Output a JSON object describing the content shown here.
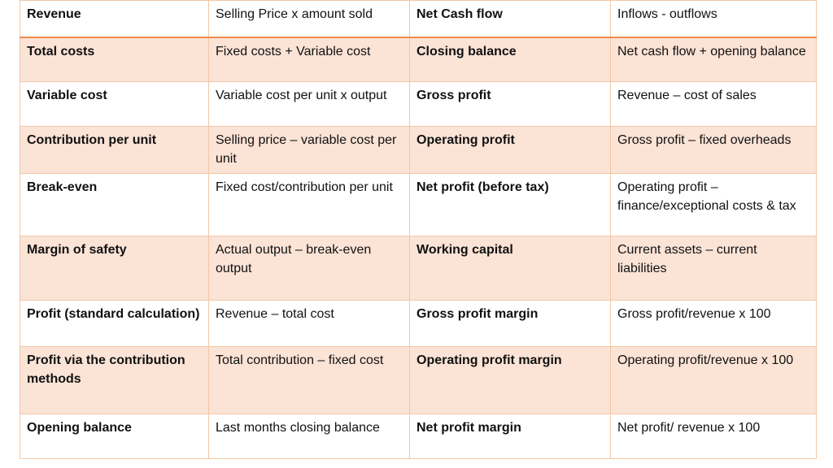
{
  "rows": [
    {
      "term1": "Revenue",
      "formula1": "Selling Price x amount sold",
      "term2": "Net Cash flow",
      "formula2": "Inflows - outflows"
    },
    {
      "term1": "Total costs",
      "formula1": "Fixed costs + Variable cost",
      "term2": "Closing balance",
      "formula2": "Net cash flow + opening balance"
    },
    {
      "term1": "Variable cost",
      "formula1": "Variable cost per unit x output",
      "term2": "Gross profit",
      "formula2": "Revenue – cost of sales"
    },
    {
      "term1": "Contribution per unit",
      "formula1": "Selling price – variable cost per unit",
      "term2": "Operating profit",
      "formula2": "Gross profit – fixed overheads"
    },
    {
      "term1": "Break-even",
      "formula1": "Fixed cost/contribution per unit",
      "term2": "Net profit (before tax)",
      "formula2": "Operating profit – finance/exceptional costs & tax"
    },
    {
      "term1": "Margin of safety",
      "formula1": "Actual output – break-even output",
      "term2": "Working capital",
      "formula2": "Current assets – current liabilities"
    },
    {
      "term1": "Profit (standard calculation)",
      "formula1": "Revenue – total cost",
      "term2": "Gross profit margin",
      "formula2": "Gross profit/revenue x 100"
    },
    {
      "term1": "Profit via the contribution methods",
      "formula1": "Total contribution – fixed cost",
      "term2": "Operating profit margin",
      "formula2": "Operating profit/revenue x 100"
    },
    {
      "term1": "Opening balance",
      "formula1": "Last months closing balance",
      "term2": "Net profit margin",
      "formula2": "Net profit/ revenue x 100"
    }
  ],
  "colors": {
    "shade": "#fbe3d6",
    "border": "#f1c8a8",
    "header_rule": "#ec8c4c"
  }
}
